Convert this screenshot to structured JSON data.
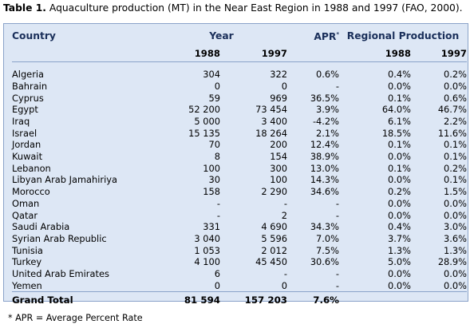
{
  "title": {
    "label": "Table 1.",
    "text": "Aquaculture production (MT) in the Near East Region in 1988 and 1997 (FAO, 2000)."
  },
  "header": {
    "country": "Country",
    "year": "Year",
    "apr": "APR",
    "apr_mark": "*",
    "regional": "Regional Production",
    "y1988": "1988",
    "y1997": "1997",
    "r1988": "1988",
    "r1997": "1997"
  },
  "rows": [
    {
      "country": "Algeria",
      "y1988": "304",
      "y1997": "322",
      "apr": "0.6%",
      "r1988": "0.4%",
      "r1997": "0.2%"
    },
    {
      "country": "Bahrain",
      "y1988": "0",
      "y1997": "0",
      "apr": "-",
      "r1988": "0.0%",
      "r1997": "0.0%"
    },
    {
      "country": "Cyprus",
      "y1988": "59",
      "y1997": "969",
      "apr": "36.5%",
      "r1988": "0.1%",
      "r1997": "0.6%"
    },
    {
      "country": "Egypt",
      "y1988": "52 200",
      "y1997": "73 454",
      "apr": "3.9%",
      "r1988": "64.0%",
      "r1997": "46.7%"
    },
    {
      "country": "Iraq",
      "y1988": "5 000",
      "y1997": "3 400",
      "apr": "-4.2%",
      "r1988": "6.1%",
      "r1997": "2.2%"
    },
    {
      "country": "Israel",
      "y1988": "15 135",
      "y1997": "18 264",
      "apr": "2.1%",
      "r1988": "18.5%",
      "r1997": "11.6%"
    },
    {
      "country": "Jordan",
      "y1988": "70",
      "y1997": "200",
      "apr": "12.4%",
      "r1988": "0.1%",
      "r1997": "0.1%"
    },
    {
      "country": "Kuwait",
      "y1988": "8",
      "y1997": "154",
      "apr": "38.9%",
      "r1988": "0.0%",
      "r1997": "0.1%"
    },
    {
      "country": "Lebanon",
      "y1988": "100",
      "y1997": "300",
      "apr": "13.0%",
      "r1988": "0.1%",
      "r1997": "0.2%"
    },
    {
      "country": "Libyan Arab Jamahiriya",
      "y1988": "30",
      "y1997": "100",
      "apr": "14.3%",
      "r1988": "0.0%",
      "r1997": "0.1%"
    },
    {
      "country": "Morocco",
      "y1988": "158",
      "y1997": "2 290",
      "apr": "34.6%",
      "r1988": "0.2%",
      "r1997": "1.5%"
    },
    {
      "country": "Oman",
      "y1988": "-",
      "y1997": "-",
      "apr": "-",
      "r1988": "0.0%",
      "r1997": "0.0%"
    },
    {
      "country": "Qatar",
      "y1988": "-",
      "y1997": "2",
      "apr": "-",
      "r1988": "0.0%",
      "r1997": "0.0%"
    },
    {
      "country": "Saudi Arabia",
      "y1988": "331",
      "y1997": "4 690",
      "apr": "34.3%",
      "r1988": "0.4%",
      "r1997": "3.0%"
    },
    {
      "country": "Syrian Arab Republic",
      "y1988": "3 040",
      "y1997": "5 596",
      "apr": "7.0%",
      "r1988": "3.7%",
      "r1997": "3.6%"
    },
    {
      "country": "Tunisia",
      "y1988": "1 053",
      "y1997": "2 012",
      "apr": "7.5%",
      "r1988": "1.3%",
      "r1997": "1.3%"
    },
    {
      "country": "Turkey",
      "y1988": "4 100",
      "y1997": "45 450",
      "apr": "30.6%",
      "r1988": "5.0%",
      "r1997": "28.9%"
    },
    {
      "country": "United Arab Emirates",
      "y1988": "6",
      "y1997": "-",
      "apr": "-",
      "r1988": "0.0%",
      "r1997": "0.0%"
    },
    {
      "country": "Yemen",
      "y1988": "0",
      "y1997": "0",
      "apr": "-",
      "r1988": "0.0%",
      "r1997": "0.0%"
    }
  ],
  "total": {
    "country": "Grand Total",
    "y1988": "81 594",
    "y1997": "157 203",
    "apr": "7.6%"
  },
  "footnote": "* APR = Average Percent Rate",
  "colors": {
    "table_background": "#dde7f5",
    "table_border": "#8aa3c9"
  }
}
